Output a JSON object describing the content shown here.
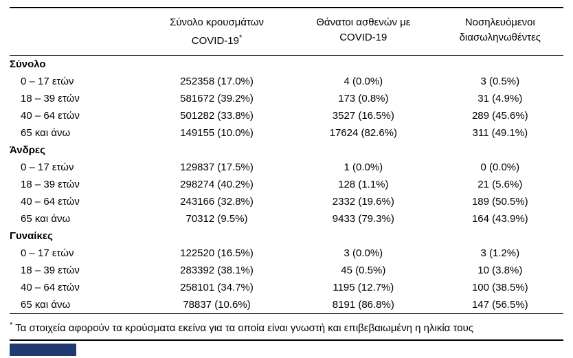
{
  "page": {
    "accent_color": "#1e3a6e"
  },
  "table": {
    "headers": [
      {
        "line1": "Σύνολο κρουσμάτων",
        "line2": "COVID-19",
        "note": "*"
      },
      {
        "line1": "Θάνατοι ασθενών με",
        "line2": "COVID-19"
      },
      {
        "line1": "Νοσηλευόμενοι",
        "line2": "διασωληνωθέντες"
      }
    ],
    "sections": [
      {
        "label": "Σύνολο",
        "rows": [
          {
            "label": "0 – 17 ετών",
            "cases": "252358 (17.0%)",
            "deaths": "4 (0.0%)",
            "intubated": "3 (0.5%)"
          },
          {
            "label": "18 – 39 ετών",
            "cases": "581672 (39.2%)",
            "deaths": "173 (0.8%)",
            "intubated": "31 (4.9%)"
          },
          {
            "label": "40 – 64 ετών",
            "cases": "501282 (33.8%)",
            "deaths": "3527 (16.5%)",
            "intubated": "289 (45.6%)"
          },
          {
            "label": "65 και άνω",
            "cases": "149155 (10.0%)",
            "deaths": "17624 (82.6%)",
            "intubated": "311 (49.1%)"
          }
        ]
      },
      {
        "label": "Άνδρες",
        "rows": [
          {
            "label": "0 – 17 ετών",
            "cases": "129837 (17.5%)",
            "deaths": "1 (0.0%)",
            "intubated": "0 (0.0%)"
          },
          {
            "label": "18 – 39 ετών",
            "cases": "298274 (40.2%)",
            "deaths": "128 (1.1%)",
            "intubated": "21 (5.6%)"
          },
          {
            "label": "40 – 64 ετών",
            "cases": "243166 (32.8%)",
            "deaths": "2332 (19.6%)",
            "intubated": "189 (50.5%)"
          },
          {
            "label": "65 και άνω",
            "cases": "70312 (9.5%)",
            "deaths": "9433 (79.3%)",
            "intubated": "164 (43.9%)"
          }
        ]
      },
      {
        "label": "Γυναίκες",
        "rows": [
          {
            "label": "0 – 17 ετών",
            "cases": "122520 (16.5%)",
            "deaths": "3 (0.0%)",
            "intubated": "3 (1.2%)"
          },
          {
            "label": "18 – 39 ετών",
            "cases": "283392 (38.1%)",
            "deaths": "45 (0.5%)",
            "intubated": "10 (3.8%)"
          },
          {
            "label": "40 – 64 ετών",
            "cases": "258101 (34.7%)",
            "deaths": "1195 (12.7%)",
            "intubated": "100 (38.5%)"
          },
          {
            "label": "65 και άνω",
            "cases": "78837 (10.6%)",
            "deaths": "8191 (86.8%)",
            "intubated": "147 (56.5%)"
          }
        ]
      }
    ],
    "footnote_marker": "*",
    "footnote_text": "Τα στοιχεία αφορούν τα κρούσματα εκείνα για τα οποία είναι γνωστή και επιβεβαιωμένη η ηλικία τους"
  }
}
